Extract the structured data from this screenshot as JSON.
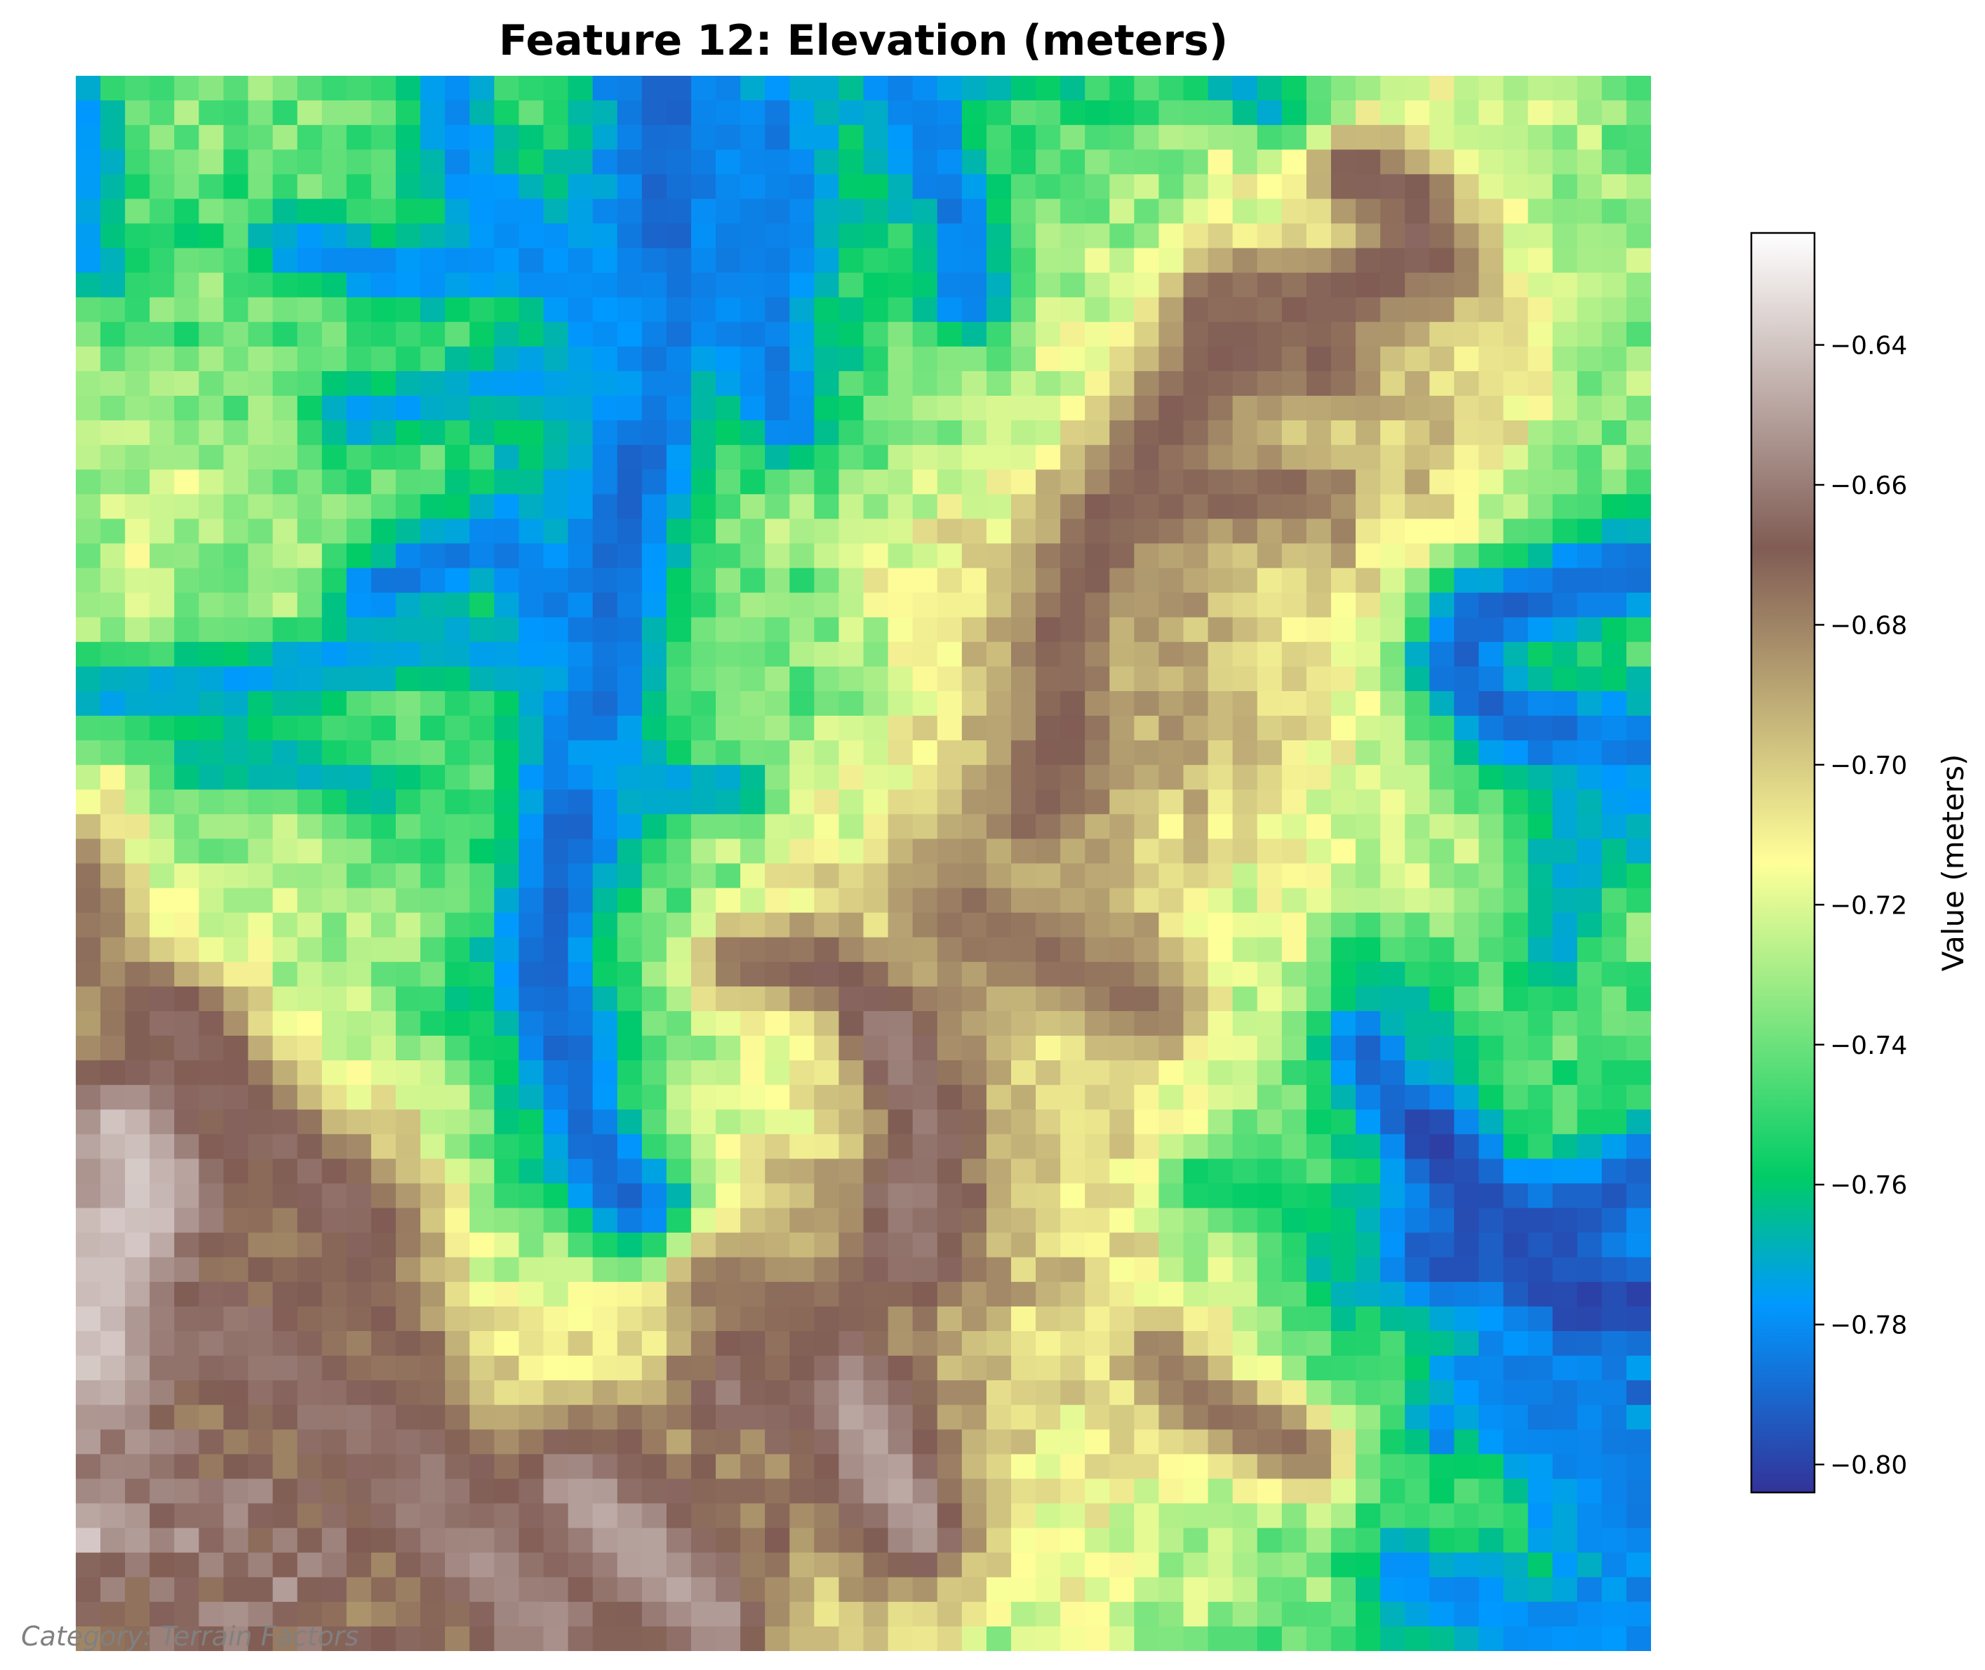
{
  "title": "Feature 12: Elevation (meters)",
  "footer_note": "Category: Terrain Factors",
  "chart_data": {
    "type": "heatmap",
    "title": "Feature 12: Elevation (meters)",
    "grid_shape": [
      64,
      64
    ],
    "colormap": "terrain",
    "vmin": -0.804,
    "vmax": -0.624,
    "colorbar": {
      "label": "Value (meters)",
      "placement": "right",
      "ticks": [
        -0.64,
        -0.66,
        -0.68,
        -0.7,
        -0.72,
        -0.74,
        -0.76,
        -0.78,
        -0.8
      ],
      "tick_labels": [
        "−0.64",
        "−0.66",
        "−0.68",
        "−0.70",
        "−0.72",
        "−0.74",
        "−0.76",
        "−0.78",
        "−0.80"
      ]
    },
    "axes_visible": false,
    "grid": false,
    "colormap_stops": [
      {
        "v": 0.0,
        "color": "#333399"
      },
      {
        "v": 0.15,
        "color": "#0099ff"
      },
      {
        "v": 0.25,
        "color": "#00cc66"
      },
      {
        "v": 0.5,
        "color": "#ffff99"
      },
      {
        "v": 0.75,
        "color": "#805c54"
      },
      {
        "v": 1.0,
        "color": "#ffffff"
      }
    ],
    "features": [
      {
        "kind": "valley",
        "level": -0.79,
        "path": [
          [
            24,
            0
          ],
          [
            24,
            8
          ],
          [
            23,
            14
          ],
          [
            22,
            20
          ],
          [
            21,
            26
          ],
          [
            20,
            31
          ],
          [
            19,
            36
          ],
          [
            20,
            40
          ],
          [
            21,
            44
          ],
          [
            23,
            46
          ]
        ],
        "width": 1.9
      },
      {
        "kind": "valley",
        "level": -0.78,
        "path": [
          [
            15,
            0
          ],
          [
            16,
            4
          ],
          [
            18,
            6
          ],
          [
            20,
            8
          ],
          [
            22,
            10
          ]
        ],
        "width": 1.4
      },
      {
        "kind": "valley",
        "level": -0.785,
        "path": [
          [
            28,
            2
          ],
          [
            29,
            6
          ],
          [
            28,
            10
          ],
          [
            29,
            14
          ]
        ],
        "width": 1.3
      },
      {
        "kind": "valley",
        "level": -0.785,
        "path": [
          [
            34,
            1
          ],
          [
            35,
            4
          ],
          [
            36,
            6
          ],
          [
            36,
            9
          ]
        ],
        "width": 1.3
      },
      {
        "kind": "valley",
        "level": -0.78,
        "path": [
          [
            9,
            7
          ],
          [
            14,
            8
          ],
          [
            18,
            7
          ],
          [
            22,
            9
          ]
        ],
        "width": 1.2
      },
      {
        "kind": "valley",
        "level": -0.775,
        "path": [
          [
            11,
            14
          ],
          [
            15,
            13
          ],
          [
            19,
            12
          ],
          [
            22,
            13
          ]
        ],
        "width": 1.1
      },
      {
        "kind": "valley",
        "level": -0.785,
        "path": [
          [
            12,
            21
          ],
          [
            14,
            20
          ],
          [
            17,
            19
          ],
          [
            19,
            21
          ]
        ],
        "width": 1.3
      },
      {
        "kind": "valley",
        "level": -0.775,
        "path": [
          [
            1,
            25
          ],
          [
            5,
            25
          ],
          [
            10,
            24
          ],
          [
            15,
            23
          ],
          [
            19,
            24
          ]
        ],
        "width": 1.2
      },
      {
        "kind": "valley",
        "level": -0.77,
        "path": [
          [
            5,
            28
          ],
          [
            9,
            28
          ],
          [
            12,
            29
          ]
        ],
        "width": 1.0
      },
      {
        "kind": "valley",
        "level": -0.775,
        "path": [
          [
            21,
            28
          ],
          [
            24,
            29
          ],
          [
            27,
            29
          ]
        ],
        "width": 1.0
      },
      {
        "kind": "valley",
        "level": -0.775,
        "path": [
          [
            0,
            1
          ],
          [
            1,
            3
          ],
          [
            0,
            6
          ],
          [
            1,
            8
          ]
        ],
        "width": 1.2
      },
      {
        "kind": "valley",
        "level": -0.79,
        "path": [
          [
            63,
            20
          ],
          [
            60,
            21
          ],
          [
            57,
            22
          ],
          [
            56,
            24
          ],
          [
            58,
            26
          ],
          [
            61,
            27
          ],
          [
            63,
            28
          ]
        ],
        "width": 1.8
      },
      {
        "kind": "valley",
        "level": -0.775,
        "path": [
          [
            63,
            29
          ],
          [
            61,
            31
          ],
          [
            60,
            32
          ]
        ],
        "width": 1.0
      },
      {
        "kind": "valley",
        "level": -0.8,
        "path": [
          [
            53,
            39
          ],
          [
            55,
            43
          ],
          [
            57,
            46
          ],
          [
            59,
            48
          ],
          [
            61,
            50
          ],
          [
            63,
            50
          ]
        ],
        "width": 1.8
      },
      {
        "kind": "valley",
        "level": -0.795,
        "path": [
          [
            52,
            48
          ],
          [
            56,
            48
          ],
          [
            60,
            47
          ],
          [
            63,
            45
          ]
        ],
        "width": 1.6
      },
      {
        "kind": "valley",
        "level": -0.785,
        "path": [
          [
            58,
            53
          ],
          [
            60,
            54
          ],
          [
            62,
            56
          ],
          [
            63,
            57
          ]
        ],
        "width": 1.5
      },
      {
        "kind": "valley",
        "level": -0.78,
        "path": [
          [
            54,
            61
          ],
          [
            57,
            62
          ],
          [
            60,
            63
          ],
          [
            63,
            63
          ]
        ],
        "width": 1.5
      },
      {
        "kind": "valley",
        "level": -0.765,
        "path": [
          [
            52,
            36
          ],
          [
            54,
            38
          ],
          [
            55,
            40
          ]
        ],
        "width": 1.0
      },
      {
        "kind": "valley",
        "level": -0.76,
        "path": [
          [
            46,
            45
          ],
          [
            50,
            46
          ],
          [
            52,
            48
          ]
        ],
        "width": 1.2
      },
      {
        "kind": "valley",
        "level": -0.77,
        "path": [
          [
            61,
            29
          ],
          [
            61,
            33
          ],
          [
            60,
            36
          ]
        ],
        "width": 1.0
      },
      {
        "kind": "valley",
        "level": -0.775,
        "path": [
          [
            47,
            0
          ],
          [
            48,
            1
          ],
          [
            50,
            2
          ]
        ],
        "width": 1.0
      },
      {
        "kind": "ridge",
        "level": -0.668,
        "path": [
          [
            52,
            4
          ],
          [
            54,
            5
          ],
          [
            55,
            7
          ],
          [
            53,
            8
          ],
          [
            51,
            9
          ],
          [
            48,
            11
          ]
        ],
        "width": 1.7
      },
      {
        "kind": "ridge",
        "level": -0.67,
        "path": [
          [
            47,
            11
          ],
          [
            45,
            13
          ],
          [
            44,
            15
          ],
          [
            43,
            17
          ],
          [
            42,
            18
          ],
          [
            41,
            20
          ],
          [
            40,
            22
          ],
          [
            40,
            25
          ],
          [
            40,
            28
          ],
          [
            39,
            30
          ]
        ],
        "width": 1.7
      },
      {
        "kind": "ridge",
        "level": -0.672,
        "path": [
          [
            44,
            17
          ],
          [
            47,
            17
          ],
          [
            50,
            17
          ]
        ],
        "width": 1.2
      },
      {
        "kind": "ridge",
        "level": -0.675,
        "path": [
          [
            36,
            34
          ],
          [
            38,
            35
          ],
          [
            40,
            36
          ],
          [
            42,
            37
          ],
          [
            44,
            38
          ]
        ],
        "width": 1.7
      },
      {
        "kind": "ridge",
        "level": -0.67,
        "path": [
          [
            27,
            36
          ],
          [
            30,
            36
          ],
          [
            32,
            37
          ]
        ],
        "width": 1.3
      },
      {
        "kind": "ridge",
        "level": -0.66,
        "path": [
          [
            33,
            39
          ],
          [
            34,
            41
          ],
          [
            35,
            43
          ],
          [
            34,
            45
          ],
          [
            34,
            48
          ]
        ],
        "width": 1.6
      },
      {
        "kind": "ridge",
        "level": -0.65,
        "path": [
          [
            29,
            52
          ],
          [
            31,
            53
          ],
          [
            32,
            55
          ],
          [
            33,
            57
          ],
          [
            34,
            59
          ]
        ],
        "width": 1.8
      },
      {
        "kind": "ridge",
        "level": -0.65,
        "path": [
          [
            20,
            57
          ],
          [
            22,
            59
          ],
          [
            24,
            61
          ],
          [
            26,
            63
          ]
        ],
        "width": 1.8
      },
      {
        "kind": "ridge",
        "level": -0.655,
        "path": [
          [
            14,
            58
          ],
          [
            16,
            60
          ],
          [
            18,
            62
          ],
          [
            19,
            63
          ]
        ],
        "width": 1.7
      },
      {
        "kind": "ridge",
        "level": -0.64,
        "path": [
          [
            2,
            43
          ],
          [
            3,
            45
          ],
          [
            2,
            47
          ],
          [
            1,
            49
          ],
          [
            1,
            52
          ]
        ],
        "width": 2.3
      },
      {
        "kind": "ridge",
        "level": -0.665,
        "path": [
          [
            3,
            38
          ],
          [
            5,
            39
          ],
          [
            6,
            41
          ],
          [
            8,
            43
          ],
          [
            10,
            45
          ],
          [
            12,
            47
          ]
        ],
        "width": 1.8
      },
      {
        "kind": "ridge",
        "level": -0.662,
        "path": [
          [
            6,
            51
          ],
          [
            9,
            53
          ],
          [
            12,
            55
          ],
          [
            15,
            57
          ]
        ],
        "width": 1.8
      },
      {
        "kind": "ridge",
        "level": -0.675,
        "path": [
          [
            0,
            32
          ],
          [
            1,
            34
          ],
          [
            0,
            36
          ]
        ],
        "width": 1.3
      },
      {
        "kind": "ridge",
        "level": -0.67,
        "path": [
          [
            10,
            49
          ],
          [
            12,
            50
          ],
          [
            14,
            52
          ]
        ],
        "width": 1.4
      },
      {
        "kind": "ridge",
        "level": -0.675,
        "path": [
          [
            26,
            49
          ],
          [
            28,
            50
          ],
          [
            29,
            52
          ]
        ],
        "width": 1.4
      },
      {
        "kind": "ridge",
        "level": -0.675,
        "path": [
          [
            44,
            52
          ],
          [
            46,
            54
          ],
          [
            48,
            55
          ],
          [
            50,
            56
          ]
        ],
        "width": 1.4
      },
      {
        "kind": "ridge",
        "level": -0.672,
        "path": [
          [
            46,
            9
          ],
          [
            48,
            9
          ],
          [
            50,
            10
          ],
          [
            51,
            12
          ]
        ],
        "width": 1.2
      }
    ]
  }
}
